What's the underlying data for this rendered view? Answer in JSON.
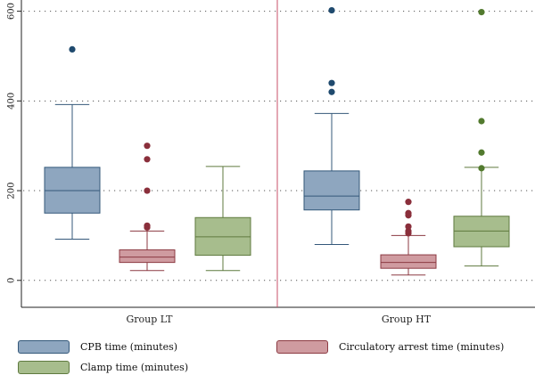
{
  "chart_data": {
    "type": "boxplot",
    "y_axis": {
      "ticks": [
        0,
        200,
        400,
        600
      ],
      "range": [
        -60,
        625
      ],
      "grid": "dotted"
    },
    "panels": [
      {
        "label": "Group LT",
        "boxes": [
          {
            "series": "cpb",
            "whisker_low": 92,
            "q1": 150,
            "median": 200,
            "q3": 252,
            "whisker_high": 392,
            "outliers": [
              515
            ]
          },
          {
            "series": "arrest",
            "whisker_low": 22,
            "q1": 40,
            "median": 52,
            "q3": 68,
            "whisker_high": 110,
            "outliers": [
              118,
              122,
              200,
              270,
              300
            ]
          },
          {
            "series": "clamp",
            "whisker_low": 22,
            "q1": 56,
            "median": 97,
            "q3": 140,
            "whisker_high": 254,
            "outliers": []
          }
        ]
      },
      {
        "label": "Group HT",
        "boxes": [
          {
            "series": "cpb",
            "whisker_low": 80,
            "q1": 157,
            "median": 188,
            "q3": 244,
            "whisker_high": 372,
            "outliers": [
              420,
              440,
              602
            ]
          },
          {
            "series": "arrest",
            "whisker_low": 12,
            "q1": 27,
            "median": 40,
            "q3": 57,
            "whisker_high": 100,
            "outliers": [
              105,
              110,
              120,
              145,
              150,
              175
            ]
          },
          {
            "series": "clamp",
            "whisker_low": 32,
            "q1": 75,
            "median": 110,
            "q3": 143,
            "whisker_high": 252,
            "outliers": [
              250,
              285,
              355,
              598
            ]
          }
        ]
      }
    ],
    "series": [
      {
        "id": "cpb",
        "name": "CPB time (minutes)",
        "fill": "#8ea6bf",
        "stroke": "#34587a",
        "dot": "#1f4a6e"
      },
      {
        "id": "arrest",
        "name": "Circulatory arrest time (minutes)",
        "fill": "#cf9ba0",
        "stroke": "#8c3a42",
        "dot": "#8a2f3b"
      },
      {
        "id": "clamp",
        "name": "Clamp time (minutes)",
        "fill": "#a7bd8d",
        "stroke": "#5f7a3f",
        "dot": "#527a2e"
      }
    ],
    "legend_position": "bottom",
    "panel_divider_color": "#c8506a"
  }
}
